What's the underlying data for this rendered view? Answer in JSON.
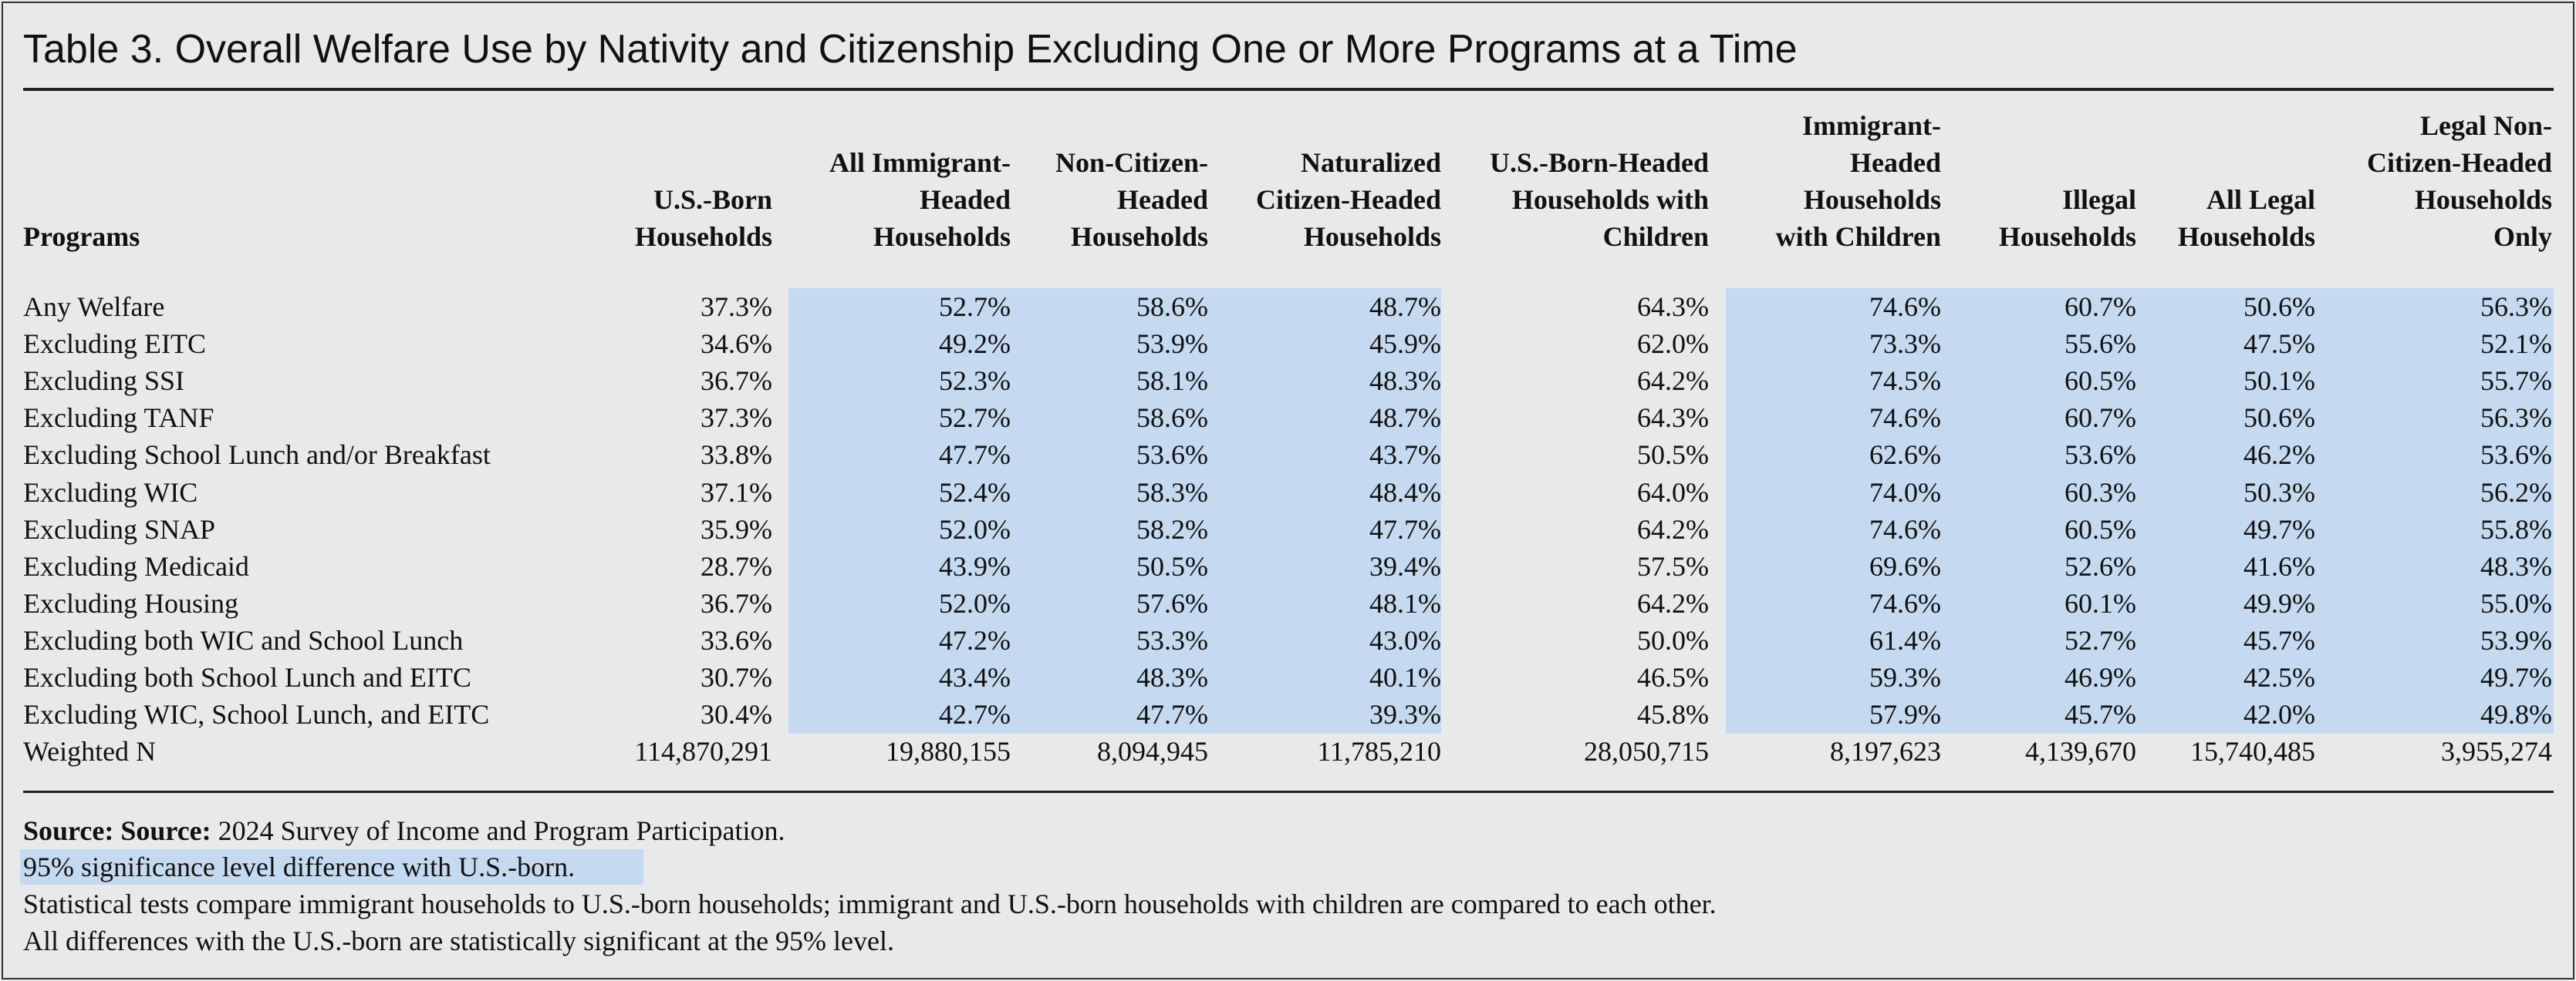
{
  "title": "Table 3. Overall Welfare Use by Nativity and Citizenship Excluding One or More Programs at a Time",
  "table": {
    "headers": [
      [
        "Programs"
      ],
      [
        "U.S.-Born",
        "Households"
      ],
      [
        "All Immigrant-",
        "Headed",
        "Households"
      ],
      [
        "Non-Citizen-",
        "Headed",
        "Households"
      ],
      [
        "Naturalized",
        "Citizen-Headed",
        "Households"
      ],
      [
        "U.S.-Born-Headed",
        "Households with",
        "Children"
      ],
      [
        "Immigrant-",
        "Headed",
        "Households",
        "with Children"
      ],
      [
        "Illegal",
        "Households"
      ],
      [
        "All Legal",
        "Households"
      ],
      [
        "Legal Non-",
        "Citizen-Headed",
        "Households",
        "Only"
      ]
    ],
    "rows": [
      [
        "Any Welfare",
        "37.3%",
        "52.7%",
        "58.6%",
        "48.7%",
        "64.3%",
        "74.6%",
        "60.7%",
        "50.6%",
        "56.3%"
      ],
      [
        "Excluding EITC",
        "34.6%",
        "49.2%",
        "53.9%",
        "45.9%",
        "62.0%",
        "73.3%",
        "55.6%",
        "47.5%",
        "52.1%"
      ],
      [
        "Excluding SSI",
        "36.7%",
        "52.3%",
        "58.1%",
        "48.3%",
        "64.2%",
        "74.5%",
        "60.5%",
        "50.1%",
        "55.7%"
      ],
      [
        "Excluding TANF",
        "37.3%",
        "52.7%",
        "58.6%",
        "48.7%",
        "64.3%",
        "74.6%",
        "60.7%",
        "50.6%",
        "56.3%"
      ],
      [
        "Excluding School Lunch and/or Breakfast",
        "33.8%",
        "47.7%",
        "53.6%",
        "43.7%",
        "50.5%",
        "62.6%",
        "53.6%",
        "46.2%",
        "53.6%"
      ],
      [
        "Excluding WIC",
        "37.1%",
        "52.4%",
        "58.3%",
        "48.4%",
        "64.0%",
        "74.0%",
        "60.3%",
        "50.3%",
        "56.2%"
      ],
      [
        "Excluding SNAP",
        "35.9%",
        "52.0%",
        "58.2%",
        "47.7%",
        "64.2%",
        "74.6%",
        "60.5%",
        "49.7%",
        "55.8%"
      ],
      [
        "Excluding Medicaid",
        "28.7%",
        "43.9%",
        "50.5%",
        "39.4%",
        "57.5%",
        "69.6%",
        "52.6%",
        "41.6%",
        "48.3%"
      ],
      [
        "Excluding Housing",
        "36.7%",
        "52.0%",
        "57.6%",
        "48.1%",
        "64.2%",
        "74.6%",
        "60.1%",
        "49.9%",
        "55.0%"
      ],
      [
        "Excluding both WIC and School Lunch",
        "33.6%",
        "47.2%",
        "53.3%",
        "43.0%",
        "50.0%",
        "61.4%",
        "52.7%",
        "45.7%",
        "53.9%"
      ],
      [
        "Excluding both School Lunch and EITC",
        "30.7%",
        "43.4%",
        "48.3%",
        "40.1%",
        "46.5%",
        "59.3%",
        "46.9%",
        "42.5%",
        "49.7%"
      ],
      [
        "Excluding WIC, School Lunch, and EITC",
        "30.4%",
        "42.7%",
        "47.7%",
        "39.3%",
        "45.8%",
        "57.9%",
        "45.7%",
        "42.0%",
        "49.8%"
      ],
      [
        "Weighted N",
        "114,870,291",
        "19,880,155",
        "8,094,945",
        "11,785,210",
        "28,050,715",
        "8,197,623",
        "4,139,670",
        "15,740,485",
        "3,955,274"
      ]
    ]
  },
  "footer": {
    "source_label": "Source: Source:",
    "source_text": "2024 Survey of Income and Program Participation.",
    "notes": [
      "95% significance level difference with U.S.-born.",
      "Statistical tests compare immigrant households to U.S.-born households; immigrant and U.S.-born households with children are compared to each other.",
      "All differences with the U.S.-born are statistically significant at the 95% level."
    ]
  }
}
